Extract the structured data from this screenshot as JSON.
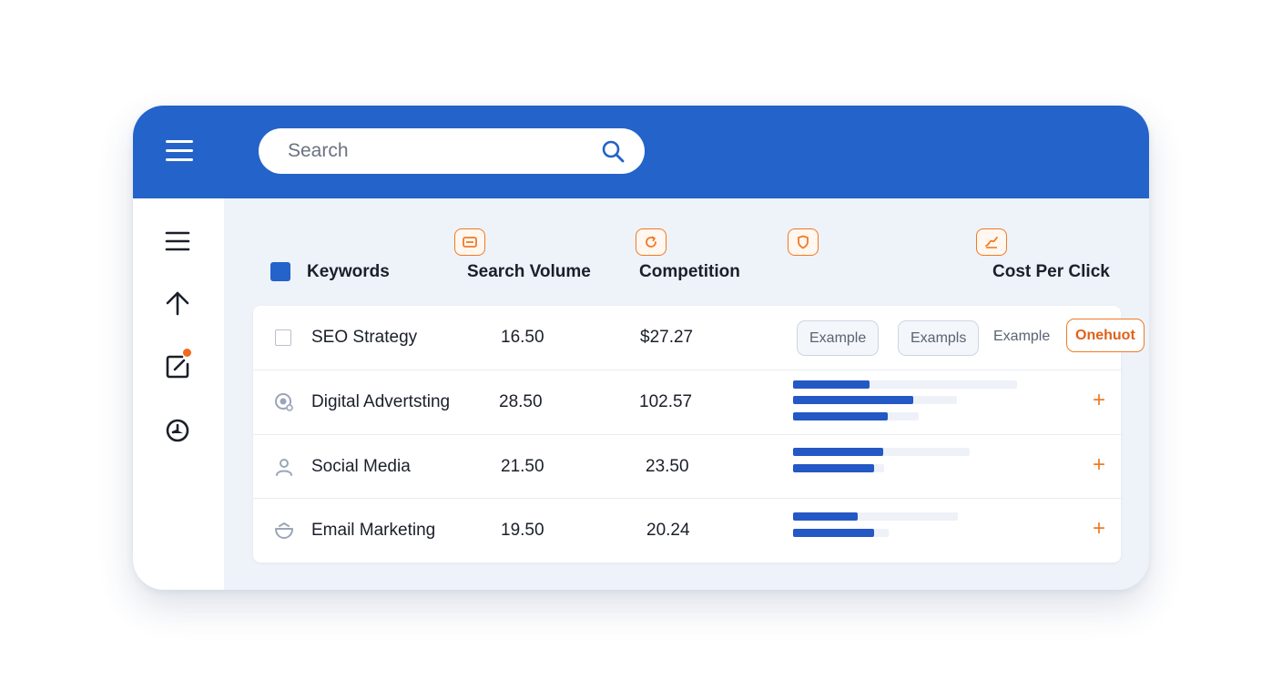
{
  "search": {
    "placeholder": "Search",
    "value": ""
  },
  "columns": {
    "keywords": "Keywords",
    "search_volume": "Search Volume",
    "competition": "Competition",
    "cost_per_click": "Cost Per Click"
  },
  "rows": [
    {
      "keyword": "SEO Strategy",
      "search_volume": "16.50",
      "competition": "$27.27",
      "chips": [
        "Example",
        "Exampls",
        "Example",
        "Onehuot"
      ]
    },
    {
      "keyword": "Digital Advertsting",
      "search_volume": "28.50",
      "competition": "102.57",
      "bars": [
        {
          "track": 246,
          "fill": 84
        },
        {
          "track": 180,
          "fill": 132
        },
        {
          "track": 138,
          "fill": 104
        }
      ],
      "action": "+"
    },
    {
      "keyword": "Social Media",
      "search_volume": "21.50",
      "competition": "23.50",
      "bars": [
        {
          "track": 194,
          "fill": 99
        },
        {
          "track": 100,
          "fill": 89
        }
      ],
      "action": "+"
    },
    {
      "keyword": "Email Marketing",
      "search_volume": "19.50",
      "competition": "20.24",
      "bars": [
        {
          "track": 181,
          "fill": 71
        },
        {
          "track": 105,
          "fill": 89
        }
      ],
      "action": "+"
    }
  ],
  "icons": {
    "topbar_menu": "hamburger-menu-icon",
    "search": "magnifier-icon",
    "sidebar": [
      "hamburger-menu-icon",
      "arrow-up-icon",
      "edit-note-icon",
      "clock-icon"
    ],
    "column_headers": [
      "ticket-icon",
      "refresh-icon",
      "shield-icon",
      "chart-icon"
    ],
    "rows": [
      "checkbox",
      "target-icon",
      "person-icon",
      "bowl-icon"
    ]
  },
  "colors": {
    "primary": "#2463c9",
    "accent": "#f07a24",
    "bar": "#2458c5",
    "notification_dot": "#f0691f"
  }
}
